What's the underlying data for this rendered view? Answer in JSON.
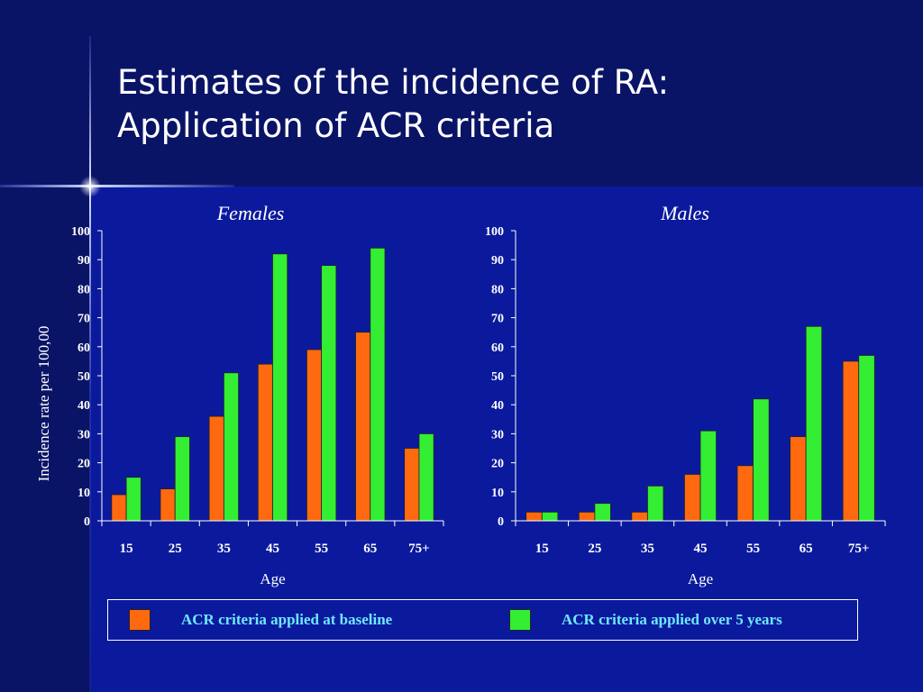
{
  "slide": {
    "title_line1": "Estimates of the incidence of RA:",
    "title_line2": "Application of ACR criteria",
    "ylabel": "Incidence rate per 100,00"
  },
  "colors": {
    "baseline": "#ff6a10",
    "five_year": "#33ee33",
    "legend_text": "#6ee8ff",
    "axis": "#ffffff"
  },
  "legend": [
    {
      "label": "ACR criteria applied at baseline",
      "color": "#ff6a10"
    },
    {
      "label": "ACR criteria applied over 5 years",
      "color": "#33ee33"
    }
  ],
  "chart_data": [
    {
      "type": "bar",
      "title": "Females",
      "xlabel": "Age",
      "ylabel": "Incidence rate per 100,00",
      "categories": [
        "15",
        "25",
        "35",
        "45",
        "55",
        "65",
        "75+"
      ],
      "ylim": [
        0,
        100
      ],
      "yticks": [
        0,
        10,
        20,
        30,
        40,
        50,
        60,
        70,
        80,
        90,
        100
      ],
      "series": [
        {
          "name": "ACR criteria applied at baseline",
          "values": [
            9,
            11,
            36,
            54,
            59,
            65,
            25
          ]
        },
        {
          "name": "ACR criteria applied over 5 years",
          "values": [
            15,
            29,
            51,
            92,
            88,
            94,
            30
          ]
        }
      ]
    },
    {
      "type": "bar",
      "title": "Males",
      "xlabel": "Age",
      "categories": [
        "15",
        "25",
        "35",
        "45",
        "55",
        "65",
        "75+"
      ],
      "ylim": [
        0,
        100
      ],
      "yticks": [
        0,
        10,
        20,
        30,
        40,
        50,
        60,
        70,
        80,
        90,
        100
      ],
      "series": [
        {
          "name": "ACR criteria applied at baseline",
          "values": [
            3,
            3,
            3,
            16,
            19,
            29,
            55
          ]
        },
        {
          "name": "ACR criteria applied over 5 years",
          "values": [
            3,
            6,
            12,
            31,
            42,
            67,
            57
          ]
        }
      ]
    }
  ]
}
